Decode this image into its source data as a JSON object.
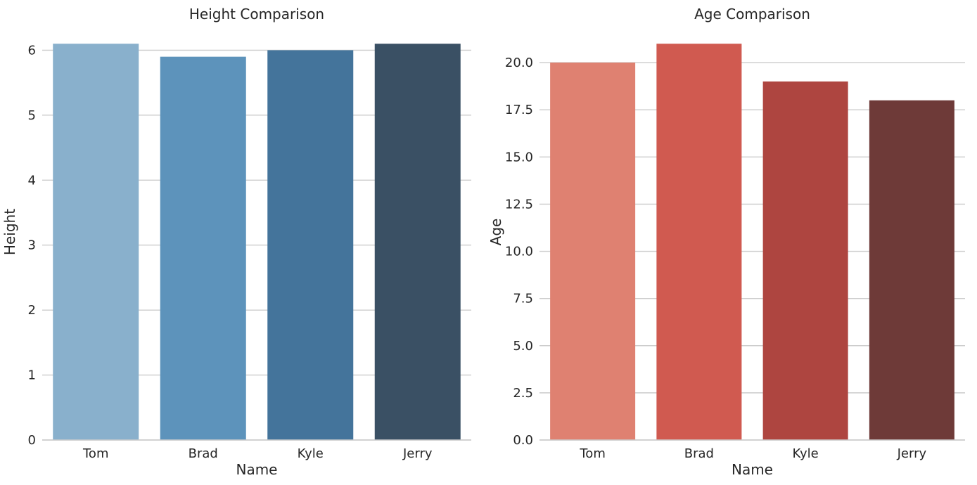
{
  "figure": {
    "background": "#ffffff",
    "grid_color": "#cccccc",
    "text_color": "#262626"
  },
  "chart_data": [
    {
      "type": "bar",
      "title": "Height Comparison",
      "xlabel": "Name",
      "ylabel": "Height",
      "categories": [
        "Tom",
        "Brad",
        "Kyle",
        "Jerry"
      ],
      "values": [
        6.1,
        5.9,
        6.0,
        6.1
      ],
      "bar_colors": [
        "#89b0cc",
        "#5d93bb",
        "#44749b",
        "#3a5064"
      ],
      "palette": "Blues_d",
      "ylim": [
        0,
        6.405
      ],
      "yticks": [
        0,
        1,
        2,
        3,
        4,
        5,
        6
      ],
      "ytick_labels": [
        "0",
        "1",
        "2",
        "3",
        "4",
        "5",
        "6"
      ],
      "grid": true,
      "legend": "none",
      "bar_rel_width": 0.8
    },
    {
      "type": "bar",
      "title": "Age Comparison",
      "xlabel": "Name",
      "ylabel": "Age",
      "categories": [
        "Tom",
        "Brad",
        "Kyle",
        "Jerry"
      ],
      "values": [
        20,
        21,
        19,
        18
      ],
      "bar_colors": [
        "#df8171",
        "#d05a50",
        "#ae4540",
        "#6e3a38"
      ],
      "palette": "Reds_d",
      "ylim": [
        0,
        22.05
      ],
      "yticks": [
        0,
        2.5,
        5,
        7.5,
        10,
        12.5,
        15,
        17.5,
        20
      ],
      "ytick_labels": [
        "0.0",
        "2.5",
        "5.0",
        "7.5",
        "10.0",
        "12.5",
        "15.0",
        "17.5",
        "20.0"
      ],
      "grid": true,
      "legend": "none",
      "bar_rel_width": 0.8
    }
  ]
}
